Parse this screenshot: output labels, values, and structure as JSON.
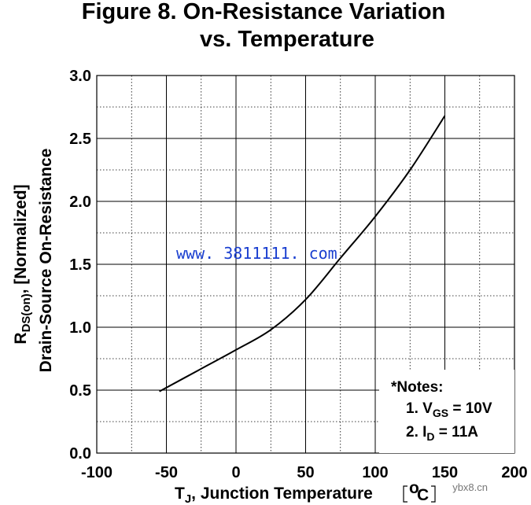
{
  "chart_data": {
    "type": "line",
    "title_line1": "Figure 8. On-Resistance Variation",
    "title_line2": "vs. Temperature",
    "ylabel_line1_prefix": "R",
    "ylabel_line1_sub": "DS(on)",
    "ylabel_line1_suffix": ", [Normalized]",
    "ylabel_line2": "Drain-Source On-Resistance",
    "xlabel_prefix": "T",
    "xlabel_sub": "J",
    "xlabel_suffix": ", Junction Temperature",
    "xlabel_unit": "o",
    "xlabel_unit_c": "C",
    "xlim": [
      -100,
      200
    ],
    "ylim": [
      0.0,
      3.0
    ],
    "x_ticks": [
      "-100",
      "-50",
      "0",
      "50",
      "100",
      "150",
      "200"
    ],
    "x_tick_values": [
      -100,
      -50,
      0,
      50,
      100,
      150,
      200
    ],
    "y_ticks": [
      "0.0",
      "0.5",
      "1.0",
      "1.5",
      "2.0",
      "2.5",
      "3.0"
    ],
    "y_tick_values": [
      0,
      0.5,
      1.0,
      1.5,
      2.0,
      2.5,
      3.0
    ],
    "grid": true,
    "series": [
      {
        "name": "RDS(on) normalized",
        "x": [
          -55,
          -25,
          0,
          25,
          50,
          75,
          100,
          125,
          150
        ],
        "y": [
          0.49,
          0.67,
          0.82,
          0.98,
          1.22,
          1.55,
          1.88,
          2.25,
          2.68
        ]
      }
    ],
    "notes": {
      "heading": "*Notes:",
      "note1_prefix": "1. V",
      "note1_sub": "GS",
      "note1_suffix": " = 10V",
      "note2_prefix": "2. I",
      "note2_sub": "D",
      "note2_suffix": " = 11A"
    },
    "legend_position": "bottom-right"
  },
  "watermark": "www. 3811111. com",
  "watermark2": "ybx8.cn"
}
